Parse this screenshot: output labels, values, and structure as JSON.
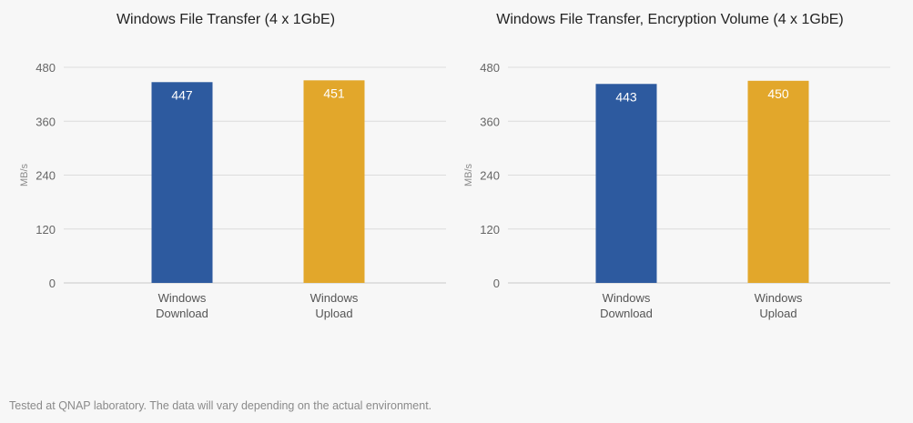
{
  "chart_data": [
    {
      "type": "bar",
      "title": "Windows File Transfer (4 x 1GbE)",
      "ylabel": "MB/s",
      "xlabel": "",
      "ylim": [
        0,
        480
      ],
      "yticks": [
        0,
        120,
        240,
        360,
        480
      ],
      "grid": true,
      "categories": [
        [
          "Windows",
          "Download"
        ],
        [
          "Windows",
          "Upload"
        ]
      ],
      "values": [
        447,
        451
      ],
      "colors": [
        "#2d5a9f",
        "#e2a72b"
      ]
    },
    {
      "type": "bar",
      "title": "Windows File Transfer, Encryption Volume (4 x 1GbE)",
      "ylabel": "MB/s",
      "xlabel": "",
      "ylim": [
        0,
        480
      ],
      "yticks": [
        0,
        120,
        240,
        360,
        480
      ],
      "grid": true,
      "categories": [
        [
          "Windows",
          "Download"
        ],
        [
          "Windows",
          "Upload"
        ]
      ],
      "values": [
        443,
        450
      ],
      "colors": [
        "#2d5a9f",
        "#e2a72b"
      ]
    }
  ],
  "footnote": "Tested at QNAP laboratory. The data will vary depending on the actual environment."
}
